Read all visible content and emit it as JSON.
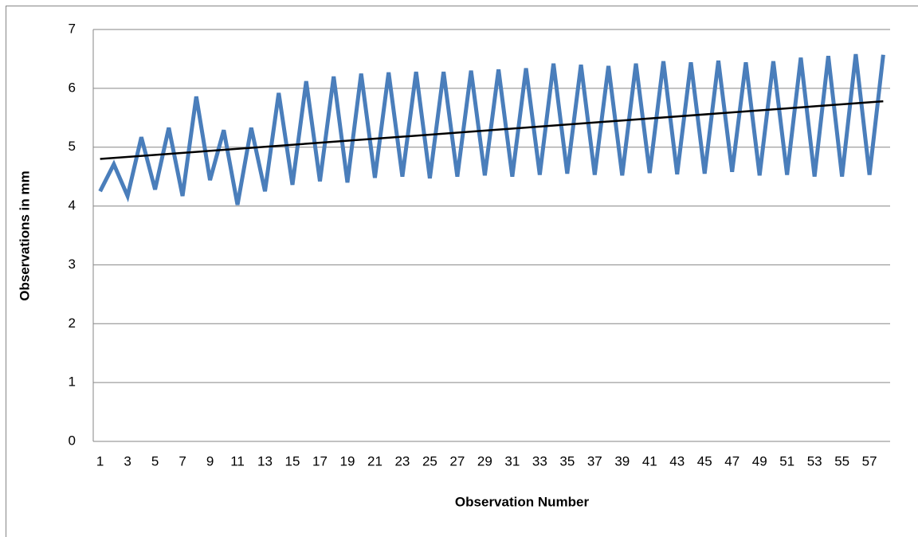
{
  "chart_data": {
    "type": "line",
    "y_label": "Observations in mm",
    "x_label": "Observation Number",
    "categories": [
      "1",
      null,
      "3",
      null,
      "5",
      null,
      "7",
      null,
      "9",
      null,
      "11",
      null,
      "13",
      null,
      "15",
      null,
      "17",
      null,
      "19",
      null,
      "21",
      null,
      "23",
      null,
      "25",
      null,
      "27",
      null,
      "29",
      null,
      "31",
      null,
      "33",
      null,
      "35",
      null,
      "37",
      null,
      "39",
      null,
      "41",
      null,
      "43",
      null,
      "45",
      null,
      "47",
      null,
      "49",
      null,
      "51",
      null,
      "53",
      null,
      "55",
      null,
      "57",
      null
    ],
    "values": [
      4.25,
      4.71,
      4.17,
      5.17,
      4.28,
      5.33,
      4.17,
      5.86,
      4.44,
      5.29,
      4.02,
      5.33,
      4.25,
      5.92,
      4.36,
      6.12,
      4.42,
      6.2,
      4.4,
      6.25,
      4.48,
      6.27,
      4.5,
      6.28,
      4.47,
      6.28,
      4.5,
      6.3,
      4.52,
      6.32,
      4.5,
      6.34,
      4.53,
      6.42,
      4.55,
      6.4,
      4.53,
      6.38,
      4.52,
      6.42,
      4.56,
      6.46,
      4.54,
      6.44,
      4.55,
      6.47,
      4.58,
      6.44,
      4.52,
      6.46,
      4.53,
      6.52,
      4.5,
      6.55,
      4.5,
      6.58,
      4.53,
      6.57
    ],
    "color": "#4a7ebb",
    "trendline": {
      "color": "#000000",
      "values": [
        4.8,
        5.78
      ]
    },
    "ylim": [
      0,
      7
    ],
    "yticks": [
      0,
      1,
      2,
      3,
      4,
      5,
      6,
      7
    ],
    "grid": true
  }
}
